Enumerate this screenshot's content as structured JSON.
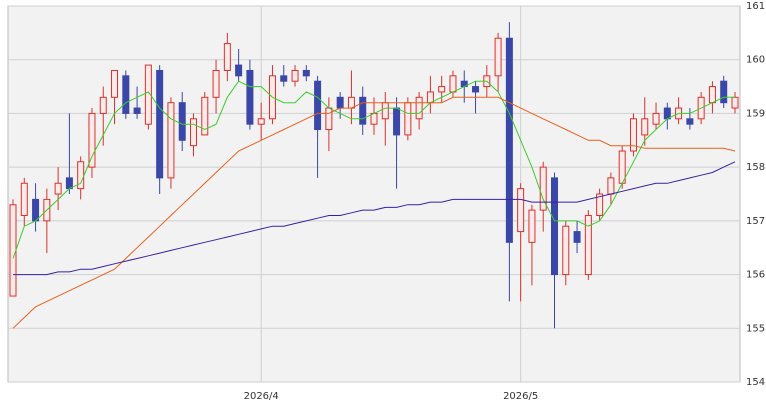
{
  "chart_data": {
    "type": "candlestick",
    "categories": [
      null,
      null,
      null,
      null,
      null,
      null,
      null,
      null,
      null,
      null,
      null,
      null,
      null,
      null,
      null,
      null,
      null,
      null,
      null,
      null,
      null,
      null,
      "2026/4",
      null,
      null,
      null,
      null,
      null,
      null,
      null,
      null,
      null,
      null,
      null,
      null,
      null,
      null,
      null,
      null,
      null,
      null,
      null,
      null,
      null,
      null,
      "2026/5",
      null,
      null,
      null,
      null,
      null,
      null,
      null,
      null,
      null,
      null,
      null,
      null,
      null,
      null,
      null,
      null,
      null,
      null,
      null
    ],
    "open": [
      155.6,
      157.1,
      157.4,
      157.0,
      157.5,
      157.8,
      157.6,
      158.0,
      159.0,
      159.3,
      159.7,
      159.1,
      158.8,
      159.8,
      157.8,
      159.2,
      158.4,
      158.6,
      159.3,
      159.8,
      159.9,
      159.8,
      158.8,
      158.9,
      159.7,
      159.6,
      159.8,
      159.6,
      158.7,
      159.3,
      159.1,
      159.3,
      158.8,
      158.9,
      159.1,
      158.6,
      158.9,
      159.2,
      159.4,
      159.4,
      159.6,
      159.5,
      159.5,
      159.7,
      160.4,
      156.8,
      156.6,
      157.2,
      157.8,
      156.0,
      156.8,
      156.0,
      157.1,
      157.5,
      157.7,
      158.3,
      158.6,
      158.8,
      159.1,
      158.9,
      158.9,
      158.9,
      159.2,
      159.6,
      159.1
    ],
    "high": [
      157.4,
      157.8,
      157.7,
      157.6,
      158.0,
      159.0,
      158.2,
      159.1,
      159.5,
      159.8,
      159.8,
      159.5,
      159.9,
      159.9,
      159.3,
      159.4,
      159.0,
      159.4,
      160.0,
      160.5,
      160.2,
      160.0,
      159.2,
      159.9,
      159.9,
      159.9,
      159.9,
      159.7,
      159.3,
      159.4,
      159.8,
      159.5,
      159.3,
      159.4,
      159.3,
      159.3,
      159.4,
      159.7,
      159.7,
      159.8,
      159.8,
      159.6,
      159.9,
      160.5,
      160.7,
      157.7,
      157.3,
      158.1,
      157.9,
      157.0,
      157.0,
      157.2,
      157.6,
      157.9,
      158.4,
      159.0,
      159.3,
      159.2,
      159.2,
      159.3,
      159.1,
      159.4,
      159.6,
      159.7,
      159.4
    ],
    "low": [
      155.6,
      156.9,
      156.8,
      156.4,
      157.2,
      157.5,
      157.4,
      157.8,
      158.4,
      158.8,
      158.9,
      158.9,
      158.7,
      157.5,
      157.6,
      158.3,
      158.2,
      158.6,
      159.0,
      159.6,
      159.6,
      158.7,
      158.5,
      158.8,
      159.5,
      159.5,
      159.6,
      157.8,
      158.3,
      158.9,
      158.8,
      158.6,
      158.6,
      158.4,
      157.6,
      158.5,
      158.7,
      159.0,
      159.2,
      159.3,
      159.2,
      159.0,
      159.3,
      159.4,
      155.5,
      155.5,
      155.8,
      156.8,
      155.0,
      155.8,
      156.4,
      155.9,
      157.0,
      157.3,
      157.6,
      158.2,
      158.4,
      158.7,
      158.7,
      158.8,
      158.7,
      158.8,
      159.0,
      159.1,
      159.0
    ],
    "close": [
      157.3,
      157.7,
      157.0,
      157.4,
      157.7,
      157.6,
      158.1,
      159.0,
      159.3,
      159.8,
      159.0,
      159.0,
      159.9,
      157.8,
      159.2,
      158.5,
      158.9,
      159.3,
      159.8,
      160.3,
      159.7,
      158.8,
      158.9,
      159.7,
      159.6,
      159.8,
      159.7,
      158.7,
      159.1,
      159.1,
      159.3,
      158.8,
      159.0,
      159.2,
      158.6,
      159.2,
      159.3,
      159.4,
      159.5,
      159.7,
      159.5,
      159.4,
      159.7,
      160.4,
      156.6,
      157.6,
      157.2,
      158.0,
      156.0,
      156.9,
      156.6,
      157.1,
      157.5,
      157.8,
      158.3,
      158.9,
      158.9,
      159.0,
      158.9,
      159.1,
      158.8,
      159.3,
      159.5,
      159.2,
      159.3
    ],
    "up_color": "#d9312b",
    "down_color": "#3a47a8",
    "series": [
      {
        "color": "#3ccc2c",
        "values": [
          156.3,
          156.9,
          157.0,
          157.2,
          157.4,
          157.6,
          157.7,
          158.2,
          158.6,
          159.0,
          159.2,
          159.3,
          159.4,
          159.1,
          158.9,
          158.8,
          158.8,
          158.7,
          158.8,
          159.3,
          159.6,
          159.5,
          159.5,
          159.3,
          159.2,
          159.2,
          159.4,
          159.3,
          159.1,
          159.0,
          158.9,
          158.9,
          159.0,
          159.1,
          159.1,
          159.0,
          159.0,
          159.2,
          159.3,
          159.4,
          159.5,
          159.6,
          159.6,
          159.4,
          159.0,
          158.5,
          158.0,
          157.4,
          157.0,
          157.0,
          157.0,
          156.9,
          157.0,
          157.3,
          157.7,
          158.1,
          158.5,
          158.7,
          158.9,
          159.0,
          159.0,
          159.1,
          159.2,
          159.3,
          159.3
        ]
      },
      {
        "color": "#e8601c",
        "values": [
          155.0,
          155.2,
          155.4,
          155.5,
          155.6,
          155.7,
          155.8,
          155.9,
          156.0,
          156.1,
          156.3,
          156.5,
          156.7,
          156.9,
          157.1,
          157.3,
          157.5,
          157.7,
          157.9,
          158.1,
          158.3,
          158.4,
          158.5,
          158.6,
          158.7,
          158.8,
          158.9,
          159.0,
          159.0,
          159.1,
          159.1,
          159.2,
          159.2,
          159.2,
          159.2,
          159.2,
          159.2,
          159.2,
          159.2,
          159.3,
          159.3,
          159.3,
          159.3,
          159.3,
          159.2,
          159.1,
          159.0,
          158.9,
          158.8,
          158.7,
          158.6,
          158.5,
          158.5,
          158.4,
          158.4,
          158.4,
          158.35,
          158.35,
          158.35,
          158.35,
          158.35,
          158.35,
          158.35,
          158.35,
          158.3
        ]
      },
      {
        "color": "#3a1fa0",
        "values": [
          156.0,
          156.0,
          156.0,
          156.0,
          156.05,
          156.05,
          156.1,
          156.1,
          156.15,
          156.2,
          156.25,
          156.3,
          156.35,
          156.4,
          156.45,
          156.5,
          156.55,
          156.6,
          156.65,
          156.7,
          156.75,
          156.8,
          156.85,
          156.9,
          156.9,
          156.95,
          157.0,
          157.05,
          157.1,
          157.1,
          157.15,
          157.2,
          157.2,
          157.25,
          157.25,
          157.3,
          157.3,
          157.35,
          157.35,
          157.4,
          157.4,
          157.4,
          157.4,
          157.4,
          157.4,
          157.4,
          157.35,
          157.35,
          157.35,
          157.35,
          157.35,
          157.4,
          157.45,
          157.5,
          157.55,
          157.6,
          157.65,
          157.7,
          157.7,
          157.75,
          157.8,
          157.85,
          157.9,
          158.0,
          158.1
        ]
      }
    ],
    "ylim": [
      154,
      161
    ],
    "yticks": [
      154,
      155,
      156,
      157,
      158,
      159,
      160,
      161
    ],
    "grid": true
  }
}
